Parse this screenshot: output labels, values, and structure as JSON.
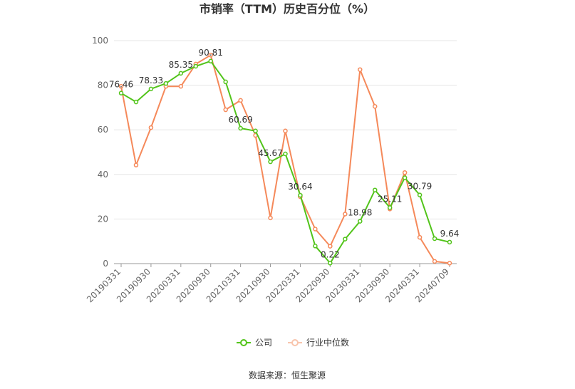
{
  "chart_data": {
    "type": "line",
    "title": "市销率（TTM）历史百分位（%）",
    "source": "数据来源：恒生聚源",
    "ylim": [
      0,
      100
    ],
    "yticks": [
      0,
      20,
      40,
      60,
      80,
      100
    ],
    "x_tick_labels": [
      "20190331",
      "20190930",
      "20200331",
      "20200930",
      "20210331",
      "20210930",
      "20220331",
      "20220930",
      "20230331",
      "20230930",
      "20240331",
      "20240709"
    ],
    "series": [
      {
        "name": "公司",
        "color": "#52c41a",
        "values": [
          76.46,
          72.5,
          78.33,
          80.8,
          85.35,
          88.5,
          90.81,
          81.5,
          60.69,
          59.5,
          45.67,
          49.2,
          30.64,
          7.9,
          0.22,
          11.0,
          18.98,
          33.0,
          25.11,
          38.5,
          30.79,
          11.2,
          9.64
        ],
        "point_labels": {
          "0": "76.46",
          "2": "78.33",
          "4": "85.35",
          "6": "90.81",
          "8": "60.69",
          "10": "45.67",
          "12": "30.64",
          "14": "0.22",
          "16": "18.98",
          "18": "25.11",
          "20": "30.79",
          "22": "9.64"
        }
      },
      {
        "name": "行业中位数",
        "color": "#f5895a",
        "values": [
          79.5,
          44.2,
          61.0,
          79.5,
          79.5,
          89.5,
          93.5,
          69.0,
          73.2,
          57.5,
          20.5,
          59.5,
          30.0,
          15.5,
          7.8,
          22.2,
          87.0,
          70.5,
          24.5,
          40.8,
          11.8,
          1.0,
          0.2
        ]
      }
    ],
    "legend_position": "bottom",
    "grid": true
  }
}
